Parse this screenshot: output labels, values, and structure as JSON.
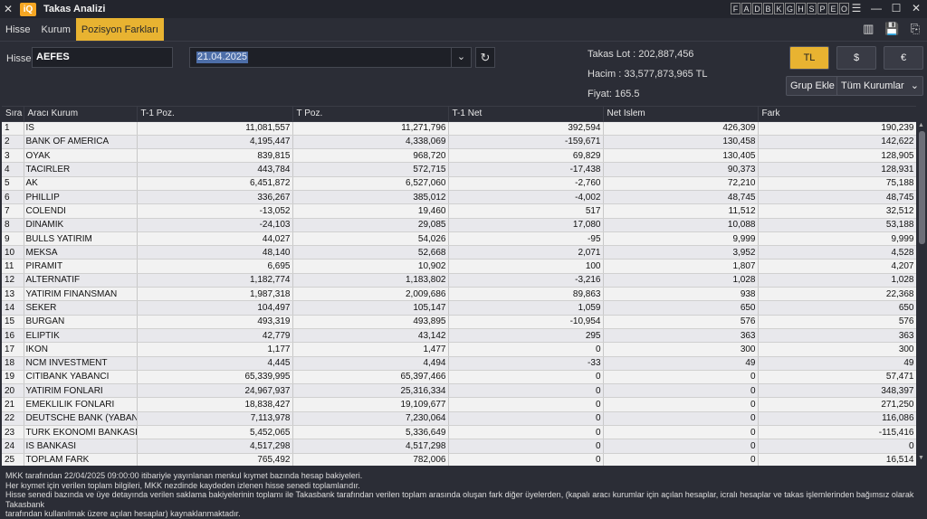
{
  "window": {
    "title": "Takas Analizi",
    "logo": "iQ"
  },
  "letter_buttons": [
    "F",
    "A",
    "D",
    "B",
    "K",
    "G",
    "H",
    "S",
    "P",
    "E",
    "O"
  ],
  "menu_tabs": [
    {
      "label": "Hisse",
      "active": false
    },
    {
      "label": "Kurum",
      "active": false
    },
    {
      "label": "Pozisyon Farkları",
      "active": true
    }
  ],
  "form": {
    "hisse_label": "Hisse",
    "hisse_value": "AEFES",
    "date_value": "21.04.2025",
    "takas_lot": "Takas Lot : 202,887,456",
    "hacim": "Hacim : 33,577,873,965 TL",
    "fiyat": "Fiyat: 165.5",
    "currency_buttons": [
      {
        "label": "TL",
        "active": true
      },
      {
        "label": "$",
        "active": false
      },
      {
        "label": "€",
        "active": false
      }
    ],
    "group_add": "Grup Ekle",
    "all_institutions": "Tüm Kurumlar"
  },
  "table": {
    "headers": [
      "Sıra",
      "Aracı Kurum",
      "T-1 Poz.",
      "T Poz.",
      "T-1 Net",
      "Net Islem",
      "Fark"
    ],
    "rows": [
      [
        "1",
        "IS",
        "11,081,557",
        "11,271,796",
        "392,594",
        "426,309",
        "190,239"
      ],
      [
        "2",
        "BANK OF AMERICA",
        "4,195,447",
        "4,338,069",
        "-159,671",
        "130,458",
        "142,622"
      ],
      [
        "3",
        "OYAK",
        "839,815",
        "968,720",
        "69,829",
        "130,405",
        "128,905"
      ],
      [
        "4",
        "TACIRLER",
        "443,784",
        "572,715",
        "-17,438",
        "90,373",
        "128,931"
      ],
      [
        "5",
        "AK",
        "6,451,872",
        "6,527,060",
        "-2,760",
        "72,210",
        "75,188"
      ],
      [
        "6",
        "PHILLIP",
        "336,267",
        "385,012",
        "-4,002",
        "48,745",
        "48,745"
      ],
      [
        "7",
        "COLENDI",
        "-13,052",
        "19,460",
        "517",
        "11,512",
        "32,512"
      ],
      [
        "8",
        "DINAMIK",
        "-24,103",
        "29,085",
        "17,080",
        "10,088",
        "53,188"
      ],
      [
        "9",
        "BULLS YATIRIM",
        "44,027",
        "54,026",
        "-95",
        "9,999",
        "9,999"
      ],
      [
        "10",
        "MEKSA",
        "48,140",
        "52,668",
        "2,071",
        "3,952",
        "4,528"
      ],
      [
        "11",
        "PIRAMIT",
        "6,695",
        "10,902",
        "100",
        "1,807",
        "4,207"
      ],
      [
        "12",
        "ALTERNATIF",
        "1,182,774",
        "1,183,802",
        "-3,216",
        "1,028",
        "1,028"
      ],
      [
        "13",
        "YATIRIM FINANSMAN",
        "1,987,318",
        "2,009,686",
        "89,863",
        "938",
        "22,368"
      ],
      [
        "14",
        "SEKER",
        "104,497",
        "105,147",
        "1,059",
        "650",
        "650"
      ],
      [
        "15",
        "BURGAN",
        "493,319",
        "493,895",
        "-10,954",
        "576",
        "576"
      ],
      [
        "16",
        "ELIPTIK",
        "42,779",
        "43,142",
        "295",
        "363",
        "363"
      ],
      [
        "17",
        "IKON",
        "1,177",
        "1,477",
        "0",
        "300",
        "300"
      ],
      [
        "18",
        "NCM INVESTMENT",
        "4,445",
        "4,494",
        "-33",
        "49",
        "49"
      ],
      [
        "19",
        "CITIBANK YABANCI",
        "65,339,995",
        "65,397,466",
        "0",
        "0",
        "57,471"
      ],
      [
        "20",
        "YATIRIM FONLARI",
        "24,967,937",
        "25,316,334",
        "0",
        "0",
        "348,397"
      ],
      [
        "21",
        "EMEKLILIK FONLARI",
        "18,838,427",
        "19,109,677",
        "0",
        "0",
        "271,250"
      ],
      [
        "22",
        "DEUTSCHE BANK (YABANCI)",
        "7,113,978",
        "7,230,064",
        "0",
        "0",
        "116,086"
      ],
      [
        "23",
        "TURK EKONOMI BANKASI",
        "5,452,065",
        "5,336,649",
        "0",
        "0",
        "-115,416"
      ],
      [
        "24",
        "IS BANKASI",
        "4,517,298",
        "4,517,298",
        "0",
        "0",
        "0"
      ],
      [
        "25",
        "TOPLAM FARK",
        "765,492",
        "782,006",
        "0",
        "0",
        "16,514"
      ]
    ]
  },
  "footer": [
    "MKK tarafından 22/04/2025 09:00:00 itibariyle yayınlanan menkul kıymet bazında hesap bakiyeleri.",
    " Her kıymet için verilen toplam bilgileri, MKK nezdinde kaydeden izlenen hisse senedi toplamlarıdır.",
    "Hisse senedi bazında ve üye detayında verilen saklama bakiyelerinin toplamı ile Takasbank tarafından verilen toplam arasında oluşan fark diğer üyelerden, (kapalı aracı kurumlar için açılan hesaplar, icralı hesaplar ve takas işlemlerinden bağımsız olarak Takasbank",
    "tarafından kullanılmak üzere açılan hesaplar) kaynaklanmaktadır."
  ]
}
